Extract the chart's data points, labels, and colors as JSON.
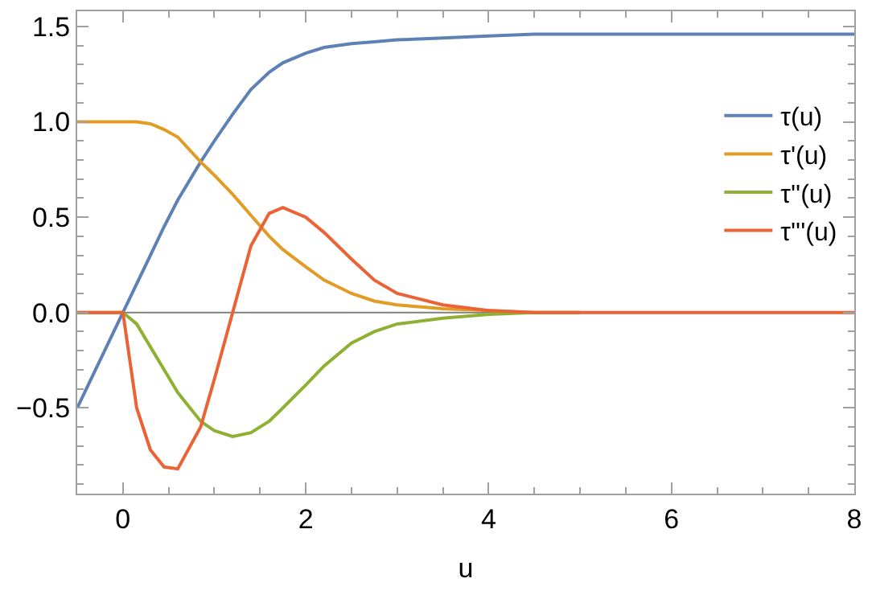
{
  "chart_data": {
    "type": "line",
    "xlabel": "u",
    "x": [
      -0.5,
      0,
      0.15,
      0.3,
      0.45,
      0.6,
      0.85,
      1.0,
      1.2,
      1.4,
      1.6,
      1.75,
      2.0,
      2.2,
      2.5,
      2.75,
      3.0,
      3.5,
      4.0,
      4.5,
      5,
      6,
      7,
      8
    ],
    "series": [
      {
        "name": "τ(u)",
        "color": "#5e81b5",
        "values": [
          -0.5,
          0,
          0.15,
          0.3,
          0.45,
          0.59,
          0.79,
          0.9,
          1.04,
          1.17,
          1.26,
          1.31,
          1.36,
          1.39,
          1.41,
          1.42,
          1.43,
          1.44,
          1.45,
          1.46,
          1.46,
          1.46,
          1.46,
          1.46
        ]
      },
      {
        "name": "τ'(u)",
        "color": "#e19c24",
        "values": [
          1,
          1,
          1,
          0.99,
          0.96,
          0.92,
          0.79,
          0.72,
          0.62,
          0.51,
          0.4,
          0.33,
          0.24,
          0.17,
          0.1,
          0.06,
          0.04,
          0.02,
          0.01,
          0,
          0,
          null,
          null,
          null
        ]
      },
      {
        "name": "τ''(u)",
        "color": "#8fb032",
        "values": [
          0,
          0,
          -0.06,
          -0.18,
          -0.3,
          -0.42,
          -0.57,
          -0.62,
          -0.65,
          -0.63,
          -0.57,
          -0.5,
          -0.38,
          -0.28,
          -0.16,
          -0.1,
          -0.06,
          -0.03,
          -0.01,
          0,
          0,
          null,
          null,
          null
        ]
      },
      {
        "name": "τ'''(u)",
        "color": "#eb6235",
        "values": [
          0,
          0,
          -0.5,
          -0.72,
          -0.81,
          -0.82,
          -0.6,
          -0.35,
          0,
          0.35,
          0.52,
          0.55,
          0.5,
          0.42,
          0.28,
          0.17,
          0.1,
          0.04,
          0.01,
          0,
          0,
          0,
          0,
          0
        ]
      }
    ],
    "xlim": [
      -0.5,
      8
    ],
    "xticks": [
      0,
      2,
      4,
      6,
      8
    ],
    "ylim": [
      -0.95,
      1.58
    ],
    "yticks": [
      {
        "value": -0.5,
        "label": "−0.5"
      },
      {
        "value": 0,
        "label": "0.0"
      },
      {
        "value": 0.5,
        "label": "0.5"
      },
      {
        "value": 1,
        "label": "1.0"
      },
      {
        "value": 1.5,
        "label": "1.5"
      }
    ],
    "ref_lines": [
      {
        "axis": "y",
        "value": 0,
        "color": "#808080"
      }
    ],
    "grid": false,
    "legend": "right",
    "marker": "none",
    "line_style": "solid"
  }
}
